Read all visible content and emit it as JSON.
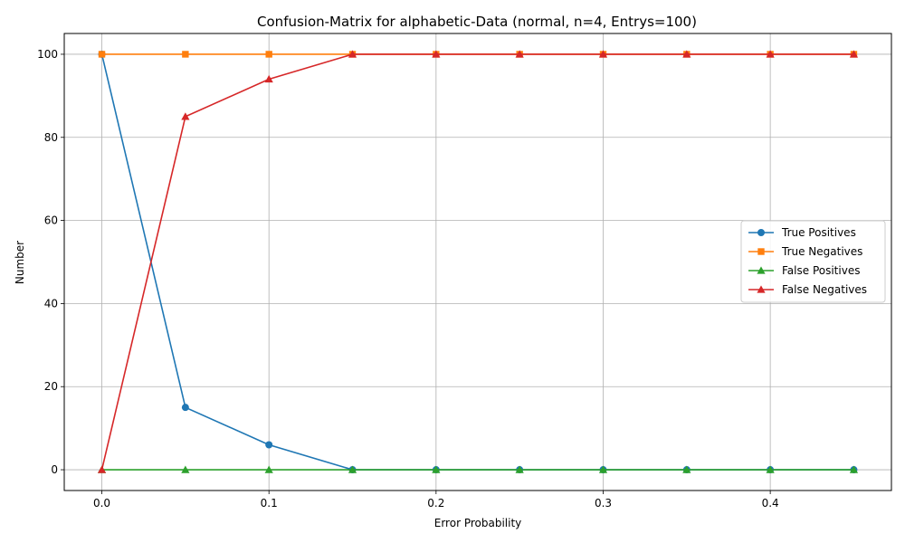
{
  "chart_data": {
    "type": "line",
    "title": "Confusion-Matrix for alphabetic-Data (normal, n=4, Entrys=100)",
    "xlabel": "Error Probability",
    "ylabel": "Number",
    "x": [
      0.0,
      0.05,
      0.1,
      0.15,
      0.2,
      0.25,
      0.3,
      0.35,
      0.4,
      0.45
    ],
    "xlim": [
      -0.0225,
      0.4725
    ],
    "ylim": [
      -5,
      105
    ],
    "xticks": [
      "0.0",
      "0.1",
      "0.2",
      "0.3",
      "0.4"
    ],
    "yticks": [
      "0",
      "20",
      "40",
      "60",
      "80",
      "100"
    ],
    "grid": true,
    "legend_position": "center-right",
    "series": [
      {
        "name": "True Positives",
        "color": "#1f77b4",
        "marker": "circle",
        "values": [
          100,
          15,
          6,
          0,
          0,
          0,
          0,
          0,
          0,
          0
        ]
      },
      {
        "name": "True Negatives",
        "color": "#ff7f0e",
        "marker": "square",
        "values": [
          100,
          100,
          100,
          100,
          100,
          100,
          100,
          100,
          100,
          100
        ]
      },
      {
        "name": "False Positives",
        "color": "#2ca02c",
        "marker": "triangle",
        "values": [
          0,
          0,
          0,
          0,
          0,
          0,
          0,
          0,
          0,
          0
        ]
      },
      {
        "name": "False Negatives",
        "color": "#d62728",
        "marker": "triangle",
        "values": [
          0,
          85,
          94,
          100,
          100,
          100,
          100,
          100,
          100,
          100
        ]
      }
    ]
  }
}
